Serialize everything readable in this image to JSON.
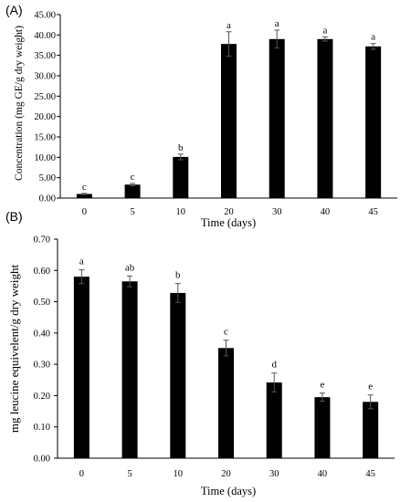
{
  "chart_data": [
    {
      "panel_label": "(A)",
      "type": "bar",
      "categories": [
        "0",
        "5",
        "10",
        "20",
        "30",
        "40",
        "45"
      ],
      "values": [
        1.0,
        3.3,
        10.1,
        37.8,
        39.0,
        39.0,
        37.2
      ],
      "errors": [
        0.15,
        0.3,
        0.7,
        3.0,
        2.2,
        0.5,
        0.7
      ],
      "significance_letters": [
        "c",
        "c",
        "b",
        "a",
        "a",
        "a",
        "a"
      ],
      "xlabel": "Time (days)",
      "ylabel": "Concentration (mg GE/g dry weight)",
      "ylim": [
        0,
        45
      ],
      "yticks": [
        "0.00",
        "5.00",
        "10.00",
        "15.00",
        "20.00",
        "25.00",
        "30.00",
        "35.00",
        "40.00",
        "45.00"
      ],
      "grid": false,
      "bar_color": "#000000"
    },
    {
      "panel_label": "(B)",
      "type": "bar",
      "categories": [
        "0",
        "5",
        "10",
        "20",
        "30",
        "40",
        "45"
      ],
      "values": [
        0.58,
        0.565,
        0.528,
        0.352,
        0.242,
        0.195,
        0.18
      ],
      "errors": [
        0.022,
        0.017,
        0.03,
        0.025,
        0.03,
        0.013,
        0.022
      ],
      "significance_letters": [
        "a",
        "ab",
        "b",
        "c",
        "d",
        "e",
        "e"
      ],
      "xlabel": "Time (days)",
      "ylabel": "mg leucine equivelent/g dry weight",
      "ylim": [
        0,
        0.7
      ],
      "yticks": [
        "0.00",
        "0.10",
        "0.20",
        "0.30",
        "0.40",
        "0.50",
        "0.60",
        "0.70"
      ],
      "grid": false,
      "bar_color": "#000000"
    }
  ]
}
